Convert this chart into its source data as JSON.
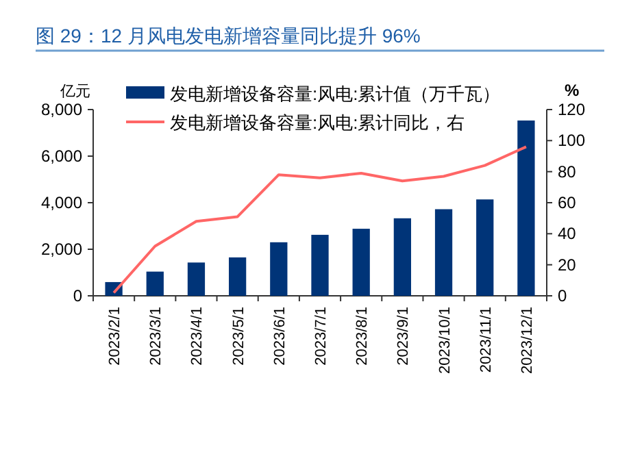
{
  "chart_data": {
    "type": "bar",
    "title": "图 29：12 月风电发电新增容量同比提升 96%",
    "ylabel": "亿元",
    "y2label": "%",
    "categories": [
      "2023/2/1",
      "2023/3/1",
      "2023/4/1",
      "2023/5/1",
      "2023/6/1",
      "2023/7/1",
      "2023/8/1",
      "2023/9/1",
      "2023/10/1",
      "2023/11/1",
      "2023/12/1"
    ],
    "series": [
      {
        "name": "发电新增设备容量:风电:累计值（万千瓦）",
        "color": "#003478",
        "values": [
          590,
          1040,
          1430,
          1650,
          2300,
          2620,
          2880,
          3330,
          3720,
          4140,
          7530
        ]
      },
      {
        "name": "发电新增设备容量:风电:累计同比，右",
        "type": "line",
        "axis": "y2",
        "color": "#ff6666",
        "values": [
          2,
          32,
          48,
          51,
          78,
          76,
          79,
          74,
          77,
          84,
          96
        ]
      }
    ],
    "ylim": [
      0,
      8000
    ],
    "yticks": [
      {
        "value": 0,
        "label": "0"
      },
      {
        "value": 2000,
        "label": "2,000"
      },
      {
        "value": 4000,
        "label": "4,000"
      },
      {
        "value": 6000,
        "label": "6,000"
      },
      {
        "value": 8000,
        "label": "8,000"
      }
    ],
    "y2lim": [
      0,
      120
    ],
    "y2ticks": [
      0,
      20,
      40,
      60,
      80,
      100,
      120
    ],
    "legend": "top",
    "grid": false
  }
}
